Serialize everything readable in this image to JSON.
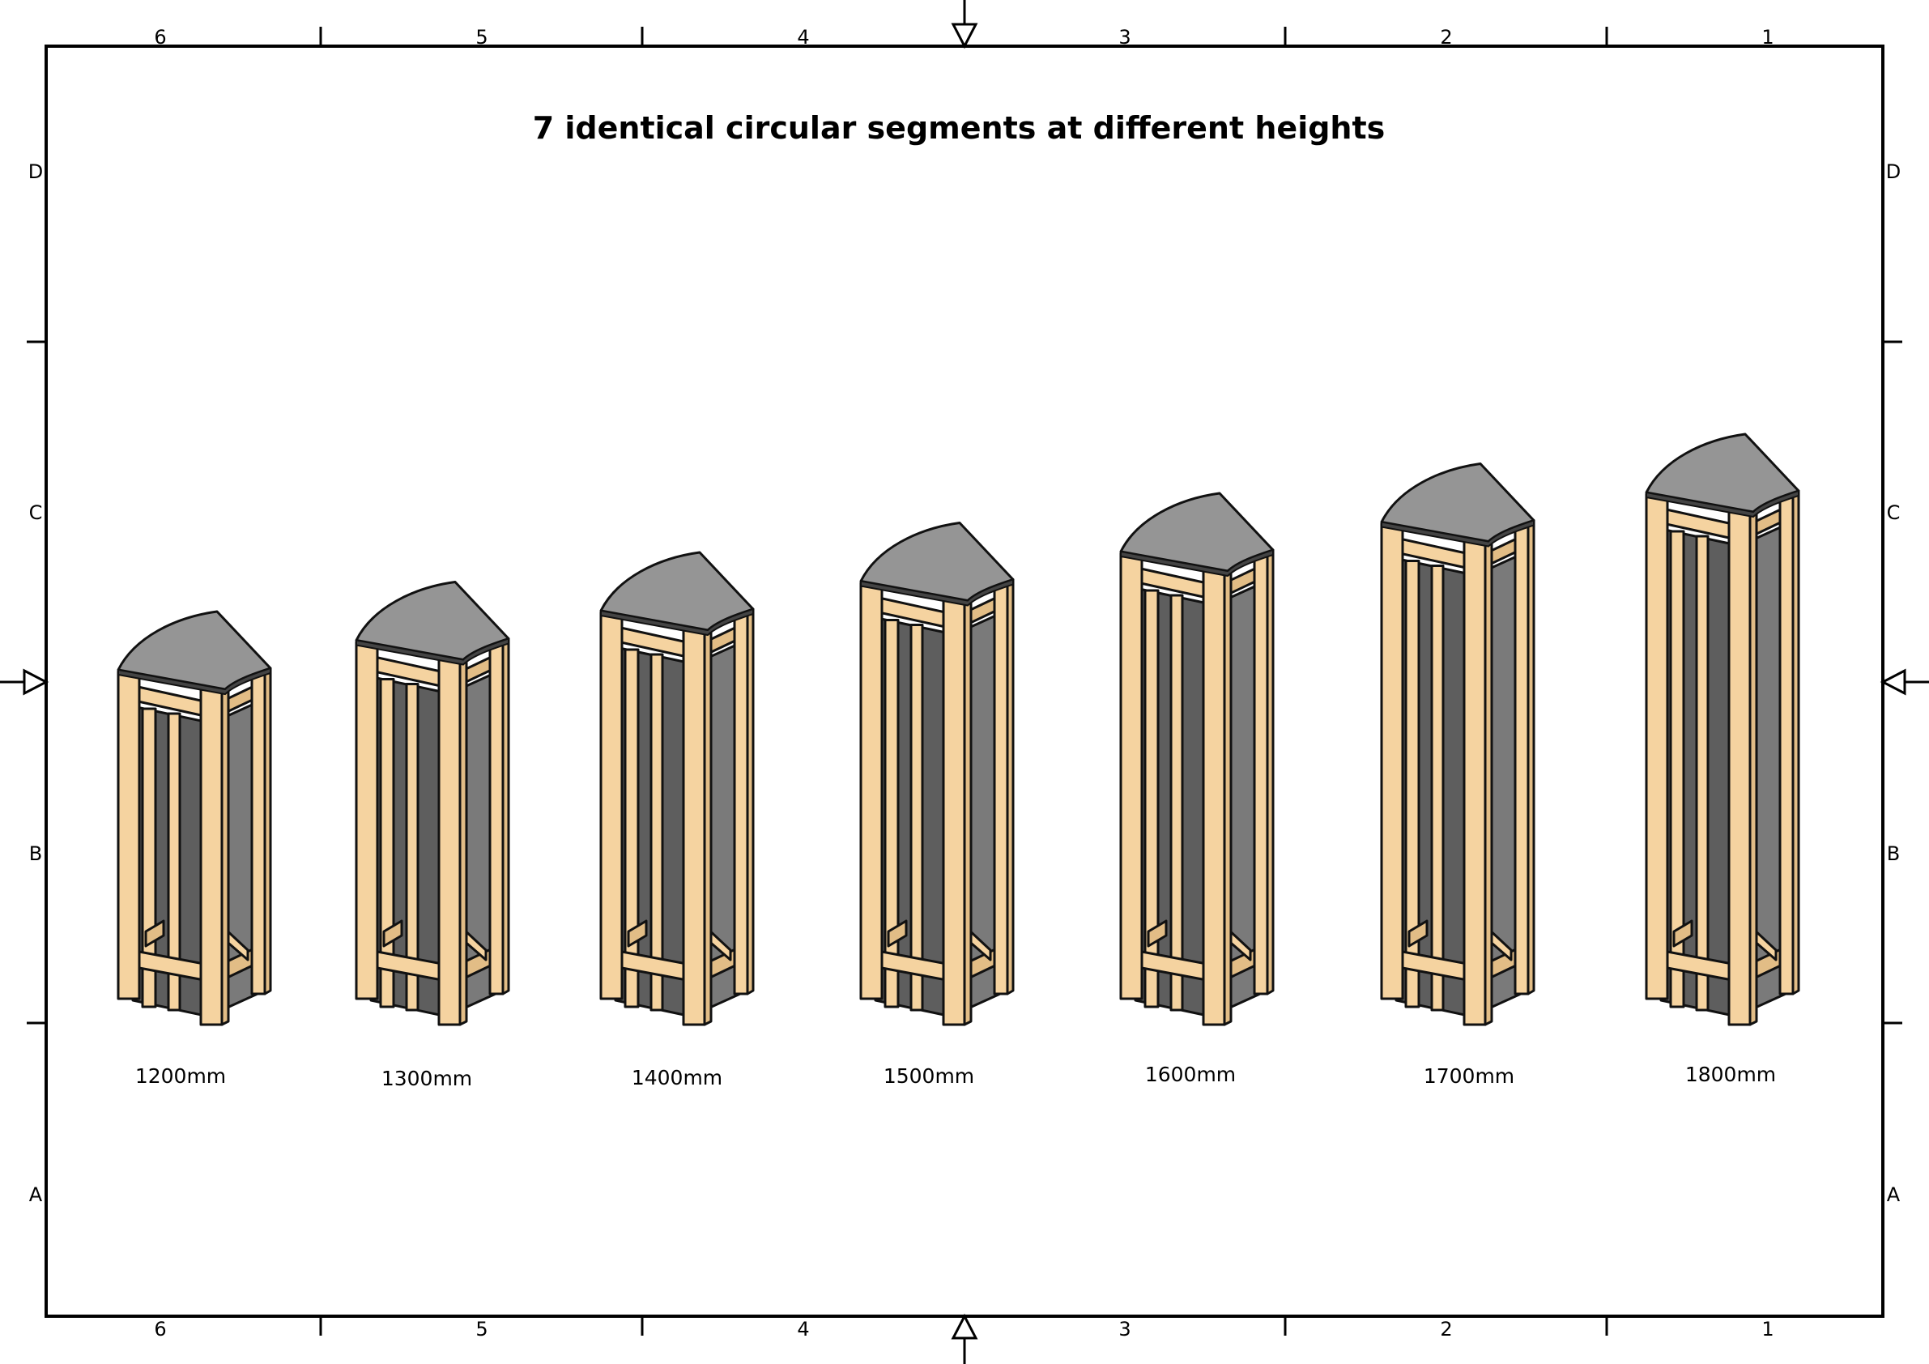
{
  "title": "7 identical circular segments at different heights",
  "border": {
    "columns": [
      "6",
      "5",
      "4",
      "3",
      "2",
      "1"
    ],
    "rows": [
      "D",
      "C",
      "B",
      "A"
    ]
  },
  "segments": [
    {
      "label": "1200mm",
      "height_mm": 1200
    },
    {
      "label": "1300mm",
      "height_mm": 1300
    },
    {
      "label": "1400mm",
      "height_mm": 1400
    },
    {
      "label": "1500mm",
      "height_mm": 1500
    },
    {
      "label": "1600mm",
      "height_mm": 1600
    },
    {
      "label": "1700mm",
      "height_mm": 1700
    },
    {
      "label": "1800mm",
      "height_mm": 1800
    }
  ],
  "colors": {
    "wood": "#f5d3a0",
    "wood_side": "#e2bd86",
    "panel": "#7a7a7a",
    "panel_back": "#5e5e5e",
    "top": "#959595",
    "line": "#111111"
  }
}
